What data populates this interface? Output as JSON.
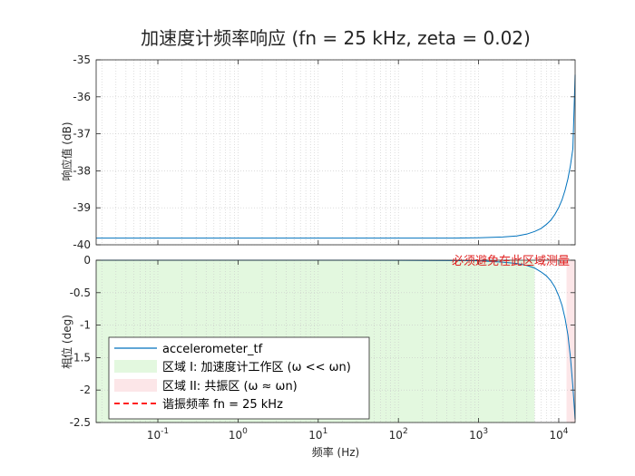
{
  "chart_data": [
    {
      "type": "line",
      "title": "加速度计频率响应 (fn = 25 kHz, zeta = 0.02)",
      "xlabel": "",
      "ylabel": "响应值 (dB)",
      "xscale": "log",
      "xlim": [
        0.017,
        16000
      ],
      "ylim": [
        -40,
        -35
      ],
      "x_tick_labels": [],
      "y_ticks": [
        -40,
        -39,
        -38,
        -37,
        -36,
        -35
      ],
      "y_tick_labels": [
        "-40",
        "-39",
        "-38",
        "-37",
        "-36",
        "-35"
      ],
      "grid": true,
      "series": [
        {
          "name": "accelerometer_tf",
          "color": "#0072BD",
          "x": [
            0.017,
            0.1,
            1,
            10,
            100,
            500,
            1000,
            2000,
            3000,
            4000,
            5000,
            6000,
            7000,
            8000,
            9000,
            10000,
            11000,
            12000,
            13000,
            14000,
            15000,
            16000
          ],
          "y": [
            -39.82,
            -39.82,
            -39.82,
            -39.82,
            -39.82,
            -39.82,
            -39.81,
            -39.79,
            -39.76,
            -39.71,
            -39.64,
            -39.56,
            -39.45,
            -39.33,
            -39.17,
            -38.99,
            -38.78,
            -38.52,
            -38.22,
            -37.85,
            -37.4,
            -35.4
          ]
        }
      ]
    },
    {
      "type": "line",
      "title": "",
      "xlabel": "频率 (Hz)",
      "ylabel": "相位 (deg)",
      "xscale": "log",
      "xlim": [
        0.017,
        16000
      ],
      "ylim": [
        -2.5,
        0
      ],
      "x_ticks": [
        0.1,
        1,
        10,
        100,
        1000,
        10000
      ],
      "x_tick_labels": [
        {
          "base": "10",
          "exp": "-1"
        },
        {
          "base": "10",
          "exp": "0"
        },
        {
          "base": "10",
          "exp": "1"
        },
        {
          "base": "10",
          "exp": "2"
        },
        {
          "base": "10",
          "exp": "3"
        },
        {
          "base": "10",
          "exp": "4"
        }
      ],
      "y_ticks": [
        -2.5,
        -2,
        -1.5,
        -1,
        -0.5,
        0
      ],
      "y_tick_labels": [
        "-2.5",
        "-2",
        "-1.5",
        "-1",
        "-0.5",
        "0"
      ],
      "grid": true,
      "series": [
        {
          "name": "accelerometer_tf",
          "color": "#0072BD",
          "x": [
            0.017,
            10,
            100,
            500,
            1000,
            2000,
            3000,
            4000,
            5000,
            6000,
            7000,
            8000,
            9000,
            10000,
            11000,
            12000,
            13000,
            14000,
            15000,
            16000
          ],
          "y": [
            0,
            0,
            -0.001,
            -0.005,
            -0.009,
            -0.03,
            -0.05,
            -0.08,
            -0.12,
            -0.18,
            -0.24,
            -0.32,
            -0.42,
            -0.55,
            -0.7,
            -0.9,
            -1.15,
            -1.5,
            -1.95,
            -2.45
          ]
        }
      ],
      "regions": [
        {
          "name": "区域 I: 加速度计工作区 (ω << ωn)",
          "x": [
            0.017,
            5000
          ],
          "color": "#e3f8df"
        },
        {
          "name": "区域 II: 共振区 (ω ≈ ωn)",
          "x": [
            12500,
            16000
          ],
          "color": "#fce6e8"
        }
      ],
      "reference_lines": [
        {
          "name": "谐振频率 fn = 25 kHz",
          "style": "dashed",
          "color": "#ff2020"
        }
      ],
      "annotations": [
        {
          "text": "必须避免在此区域测量",
          "color": "#e02020"
        }
      ],
      "legend_position": "lower-left"
    }
  ]
}
